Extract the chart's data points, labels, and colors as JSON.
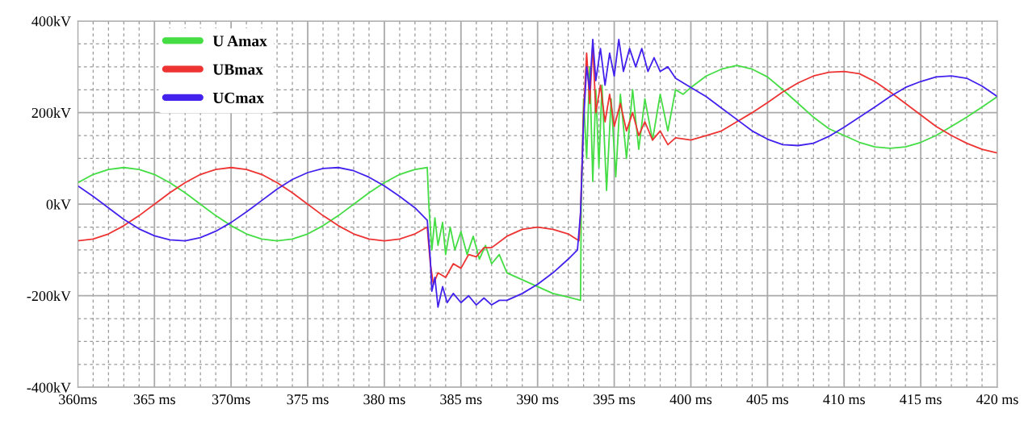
{
  "chart_data": {
    "type": "line",
    "xlim": [
      360,
      420
    ],
    "ylim": [
      -400,
      400
    ],
    "xticks": [
      {
        "value": 360,
        "label": "360ms"
      },
      {
        "value": 365,
        "label": "365 ms"
      },
      {
        "value": 370,
        "label": "370ms"
      },
      {
        "value": 375,
        "label": "375 ms"
      },
      {
        "value": 380,
        "label": "380 ms"
      },
      {
        "value": 385,
        "label": "385 ms"
      },
      {
        "value": 390,
        "label": "390 ms"
      },
      {
        "value": 395,
        "label": "395 ms"
      },
      {
        "value": 400,
        "label": "400 ms"
      },
      {
        "value": 405,
        "label": "405 ms"
      },
      {
        "value": 410,
        "label": "410 ms"
      },
      {
        "value": 415,
        "label": "415 ms"
      },
      {
        "value": 420,
        "label": "420 ms"
      }
    ],
    "yticks": [
      {
        "value": 400,
        "label": "400kV"
      },
      {
        "value": 200,
        "label": "200kV"
      },
      {
        "value": 0,
        "label": "0kV"
      },
      {
        "value": -200,
        "label": "-200kV"
      },
      {
        "value": -400,
        "label": "-400kV"
      }
    ],
    "grid": true,
    "legend": "top left",
    "marker": "none",
    "line_style": "solid",
    "series": [
      {
        "name": "U Amax",
        "color": "#44dd44",
        "x": [
          360,
          361,
          362,
          363,
          364,
          365,
          366,
          367,
          368,
          369,
          370,
          371,
          372,
          373,
          374,
          375,
          376,
          377,
          378,
          379,
          380,
          381,
          382,
          382.8,
          382.9,
          383.1,
          383.3,
          383.5,
          383.8,
          384,
          384.3,
          384.6,
          385,
          385.4,
          385.8,
          386.2,
          386.6,
          387,
          387.5,
          388,
          389,
          390,
          391,
          392,
          392.8,
          392.85,
          393,
          393.2,
          393.4,
          393.6,
          393.8,
          394,
          394.2,
          394.5,
          394.8,
          395.1,
          395.4,
          395.8,
          396.2,
          396.6,
          397,
          397.5,
          398,
          398.5,
          399,
          399.5,
          400,
          401,
          402,
          403,
          404,
          405,
          406,
          407,
          408,
          409,
          410,
          411,
          412,
          413,
          414,
          415,
          416,
          417,
          418,
          419,
          420
        ],
        "values": [
          47,
          65,
          76,
          80,
          76,
          65,
          47,
          25,
          0,
          -25,
          -47,
          -65,
          -76,
          -80,
          -76,
          -65,
          -47,
          -25,
          0,
          25,
          47,
          65,
          76,
          80,
          0,
          -100,
          -30,
          -90,
          -40,
          -110,
          -50,
          -100,
          -60,
          -110,
          -70,
          -120,
          -90,
          -130,
          -110,
          -150,
          -165,
          -180,
          -195,
          -203,
          -210,
          0,
          230,
          100,
          300,
          50,
          250,
          80,
          260,
          30,
          230,
          60,
          240,
          100,
          250,
          120,
          230,
          140,
          240,
          160,
          250,
          240,
          255,
          280,
          295,
          303,
          295,
          278,
          250,
          220,
          190,
          165,
          150,
          135,
          125,
          122,
          125,
          135,
          150,
          170,
          190,
          212,
          235
        ]
      },
      {
        "name": "UBmax",
        "color": "#ee3333",
        "x": [
          360,
          361,
          362,
          363,
          364,
          365,
          366,
          367,
          368,
          369,
          370,
          371,
          372,
          373,
          374,
          375,
          376,
          377,
          378,
          379,
          380,
          381,
          382,
          382.8,
          383,
          383.2,
          383.5,
          384,
          384.5,
          385,
          385.5,
          386,
          386.5,
          387,
          388,
          389,
          390,
          391,
          392,
          392.7,
          392.8,
          393,
          393.2,
          393.4,
          393.6,
          393.8,
          394.1,
          394.4,
          394.7,
          395,
          395.4,
          395.8,
          396.2,
          396.6,
          397,
          397.5,
          398,
          398.5,
          399,
          400,
          401,
          402,
          403,
          404,
          405,
          406,
          407,
          408,
          409,
          410,
          411,
          412,
          413,
          414,
          415,
          416,
          417,
          418,
          419,
          420
        ],
        "values": [
          -80,
          -76,
          -65,
          -47,
          -25,
          0,
          25,
          47,
          65,
          76,
          80,
          76,
          65,
          47,
          25,
          0,
          -25,
          -47,
          -65,
          -76,
          -80,
          -76,
          -65,
          -50,
          -130,
          -175,
          -150,
          -160,
          -130,
          -140,
          -110,
          -115,
          -95,
          -95,
          -70,
          -55,
          -50,
          -55,
          -65,
          -80,
          -20,
          200,
          330,
          220,
          350,
          200,
          260,
          180,
          240,
          170,
          220,
          160,
          200,
          150,
          180,
          140,
          160,
          130,
          145,
          140,
          150,
          160,
          180,
          200,
          222,
          245,
          265,
          280,
          288,
          290,
          285,
          268,
          245,
          220,
          195,
          170,
          150,
          133,
          120,
          112
        ]
      },
      {
        "name": "UCmax",
        "color": "#4422ee",
        "x": [
          360,
          361,
          362,
          363,
          364,
          365,
          366,
          367,
          368,
          369,
          370,
          371,
          372,
          373,
          374,
          375,
          376,
          377,
          378,
          379,
          380,
          381,
          382,
          382.8,
          383,
          383.1,
          383.3,
          383.5,
          383.8,
          384.1,
          384.5,
          385,
          385.5,
          386,
          386.5,
          387,
          387.5,
          388,
          389,
          390,
          391,
          392,
          392.6,
          392.8,
          393,
          393.2,
          393.4,
          393.6,
          393.8,
          394.1,
          394.4,
          394.7,
          395,
          395.3,
          395.6,
          396,
          396.4,
          396.8,
          397.2,
          397.6,
          398,
          398.5,
          399,
          399.5,
          400,
          401,
          402,
          403,
          404,
          405,
          406,
          407,
          408,
          409,
          410,
          411,
          412,
          413,
          414,
          415,
          416,
          417,
          418,
          419,
          420
        ],
        "values": [
          40,
          17,
          -8,
          -33,
          -54,
          -69,
          -78,
          -80,
          -73,
          -59,
          -40,
          -17,
          8,
          33,
          54,
          69,
          78,
          80,
          73,
          59,
          40,
          17,
          -8,
          -35,
          -120,
          -190,
          -160,
          -225,
          -180,
          -215,
          -195,
          -215,
          -200,
          -220,
          -205,
          -220,
          -210,
          -210,
          -195,
          -175,
          -150,
          -120,
          -100,
          -20,
          180,
          300,
          250,
          360,
          270,
          340,
          260,
          330,
          280,
          360,
          290,
          340,
          300,
          340,
          290,
          320,
          290,
          300,
          275,
          265,
          255,
          235,
          210,
          185,
          160,
          142,
          130,
          128,
          133,
          148,
          168,
          190,
          212,
          235,
          255,
          268,
          278,
          280,
          275,
          258,
          235
        ]
      }
    ]
  }
}
